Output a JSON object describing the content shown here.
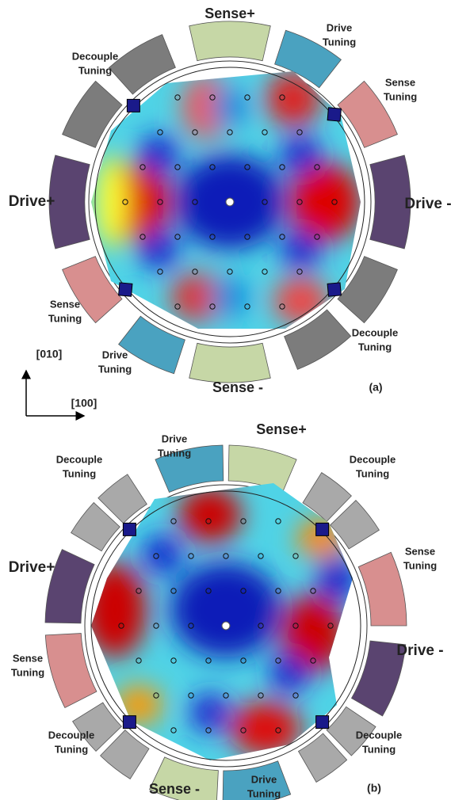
{
  "panel_a": {
    "caption": "(a)",
    "labels": [
      {
        "lines": [
          "Sense+"
        ]
      },
      {
        "lines": [
          "Drive",
          "Tuning"
        ]
      },
      {
        "lines": [
          "Sense",
          "Tuning"
        ]
      },
      {
        "lines": [
          "Decouple",
          "Tuning"
        ]
      },
      {
        "lines": [
          "Drive+"
        ]
      },
      {
        "lines": [
          "Drive -"
        ]
      },
      {
        "lines": [
          "Sense",
          "Tuning"
        ]
      },
      {
        "lines": [
          "Decouple",
          "Tuning"
        ]
      },
      {
        "lines": [
          "Drive",
          "Tuning"
        ]
      },
      {
        "lines": [
          "Sense -"
        ]
      }
    ]
  },
  "axes": {
    "y": "[010]",
    "x": "[100]"
  },
  "panel_b": {
    "caption": "(b)",
    "labels": [
      {
        "lines": [
          "Drive",
          "Tuning"
        ]
      },
      {
        "lines": [
          "Sense+"
        ]
      },
      {
        "lines": [
          "Decouple",
          "Tuning"
        ]
      },
      {
        "lines": [
          "Decouple",
          "Tuning"
        ]
      },
      {
        "lines": [
          "Drive+"
        ]
      },
      {
        "lines": [
          "Sense",
          "Tuning"
        ]
      },
      {
        "lines": [
          "Drive -"
        ]
      },
      {
        "lines": [
          "Sense",
          "Tuning"
        ]
      },
      {
        "lines": [
          "Decouple",
          "Tuning"
        ]
      },
      {
        "lines": [
          "Decouple",
          "Tuning"
        ]
      },
      {
        "lines": [
          "Sense -"
        ]
      },
      {
        "lines": [
          "Drive",
          "Tuning"
        ]
      }
    ]
  }
}
